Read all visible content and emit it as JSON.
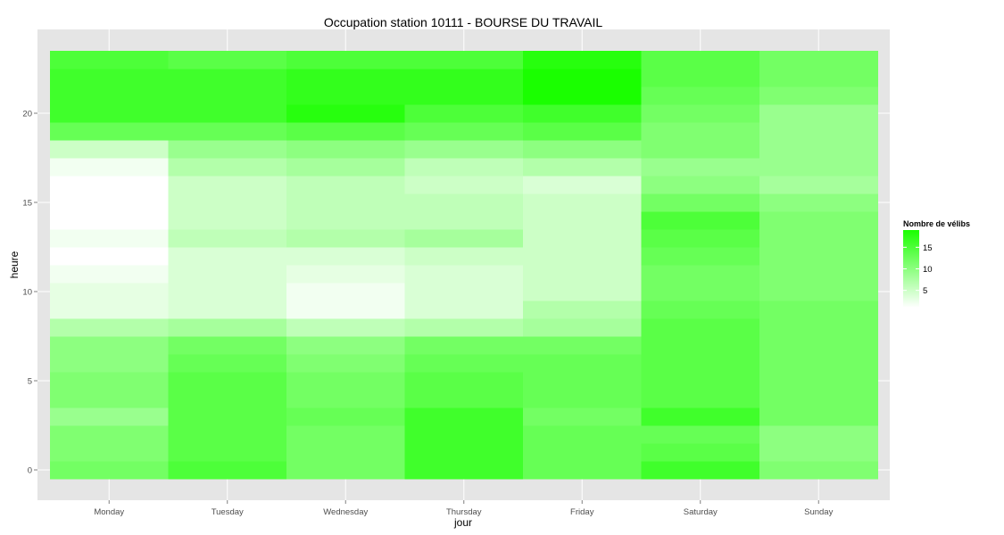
{
  "chart_data": {
    "type": "heatmap",
    "title": "Occupation station 10111 - BOURSE DU TRAVAIL",
    "xlabel": "jour",
    "ylabel": "heure",
    "x_categories": [
      "Monday",
      "Tuesday",
      "Wednesday",
      "Thursday",
      "Friday",
      "Saturday",
      "Sunday"
    ],
    "y_hours": [
      0,
      1,
      2,
      3,
      4,
      5,
      6,
      7,
      8,
      9,
      10,
      11,
      12,
      13,
      14,
      15,
      16,
      17,
      18,
      19,
      20,
      21,
      22,
      23
    ],
    "ylim": [
      -0.5,
      23.5
    ],
    "y_ticks": [
      0,
      5,
      10,
      15,
      20
    ],
    "values": [
      [
        12,
        15,
        12,
        16,
        13,
        16,
        11
      ],
      [
        11,
        14,
        12,
        16,
        13,
        14,
        10
      ],
      [
        11,
        14,
        12,
        16,
        13,
        13,
        10
      ],
      [
        9,
        14,
        13,
        16,
        12,
        16,
        12
      ],
      [
        11,
        14,
        12,
        14,
        13,
        14,
        12
      ],
      [
        11,
        14,
        12,
        14,
        13,
        14,
        12
      ],
      [
        10,
        13,
        11,
        13,
        13,
        14,
        12
      ],
      [
        10,
        12,
        10,
        12,
        12,
        14,
        12
      ],
      [
        7,
        8,
        6,
        7,
        8,
        14,
        12
      ],
      [
        3,
        4,
        2,
        4,
        7,
        13,
        12
      ],
      [
        3,
        4,
        2,
        4,
        5,
        12,
        11
      ],
      [
        2,
        4,
        3,
        4,
        5,
        12,
        11
      ],
      [
        1,
        4,
        4,
        5,
        5,
        13,
        11
      ],
      [
        2,
        6,
        7,
        8,
        5,
        14,
        11
      ],
      [
        1,
        5,
        6,
        6,
        5,
        15,
        11
      ],
      [
        1,
        5,
        6,
        6,
        5,
        12,
        10
      ],
      [
        1,
        5,
        6,
        5,
        4,
        10,
        8
      ],
      [
        2,
        7,
        8,
        6,
        7,
        9,
        9
      ],
      [
        5,
        9,
        10,
        9,
        10,
        11,
        9
      ],
      [
        13,
        13,
        14,
        13,
        14,
        11,
        9
      ],
      [
        16,
        16,
        18,
        15,
        16,
        12,
        9
      ],
      [
        16,
        16,
        17,
        17,
        19,
        13,
        11
      ],
      [
        16,
        16,
        17,
        17,
        19,
        14,
        12
      ],
      [
        15,
        14,
        15,
        15,
        18,
        14,
        12
      ]
    ],
    "color_low": "#ffffff",
    "color_high": "#1aff00",
    "value_range": [
      1,
      19
    ],
    "legend": {
      "title": "Nombre de vélibs",
      "ticks": [
        5,
        10,
        15
      ],
      "position": "right"
    },
    "grid": true,
    "panel_background": "#e5e5e5"
  }
}
